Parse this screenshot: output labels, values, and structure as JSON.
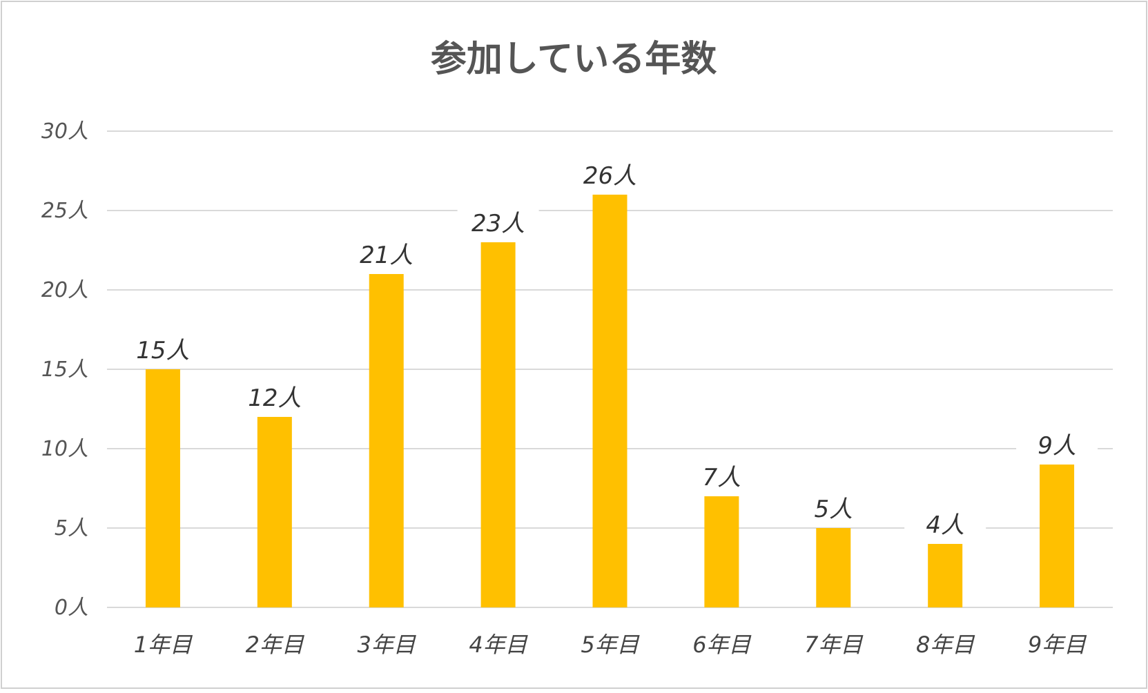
{
  "chart_data": {
    "type": "bar",
    "title": "参加している年数",
    "categories": [
      "1年目",
      "2年目",
      "3年目",
      "4年目",
      "5年目",
      "6年目",
      "7年目",
      "8年目",
      "9年目"
    ],
    "values": [
      15,
      12,
      21,
      23,
      26,
      7,
      5,
      4,
      9
    ],
    "data_labels": [
      "15人",
      "12人",
      "21人",
      "23人",
      "26人",
      "7人",
      "5人",
      "4人",
      "9人"
    ],
    "y_ticks": [
      0,
      5,
      10,
      15,
      20,
      25,
      30
    ],
    "y_tick_labels": [
      "0人",
      "5人",
      "10人",
      "15人",
      "20人",
      "25人",
      "30人"
    ],
    "ylim": [
      0,
      30
    ],
    "grid": true,
    "legend": "none",
    "bar_color": "#FFC000",
    "grid_color": "#D9D9D9"
  }
}
